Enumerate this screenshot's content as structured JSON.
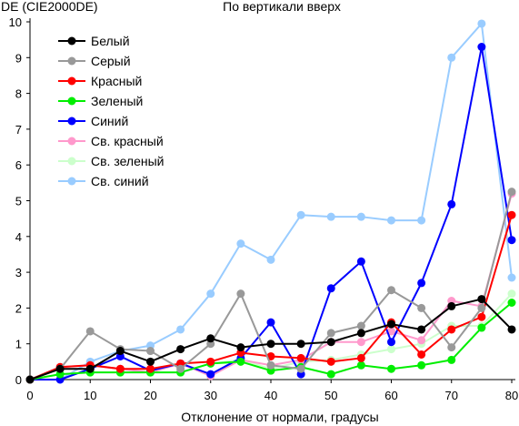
{
  "chart_data": {
    "type": "line",
    "title": "По вертикали вверх",
    "ylabel": "DE (CIE2000DE)",
    "xlabel": "Отклонение от нормали, градусы",
    "x": [
      0,
      5,
      10,
      15,
      20,
      25,
      30,
      35,
      40,
      45,
      50,
      55,
      60,
      65,
      70,
      75,
      80
    ],
    "xlim": [
      0,
      80
    ],
    "ylim": [
      0,
      10
    ],
    "xticks": [
      0,
      10,
      20,
      30,
      40,
      50,
      60,
      70,
      80
    ],
    "yticks": [
      0,
      1,
      2,
      3,
      4,
      5,
      6,
      7,
      8,
      9,
      10
    ],
    "grid": false,
    "legend_position": "top-left",
    "series": [
      {
        "name": "Белый",
        "color": "#000000",
        "values": [
          0,
          0.3,
          0.3,
          0.8,
          0.5,
          0.85,
          1.15,
          0.9,
          1.0,
          1.0,
          1.05,
          1.3,
          1.55,
          1.4,
          2.05,
          2.25,
          1.4
        ]
      },
      {
        "name": "Серый",
        "color": "#999999",
        "values": [
          0,
          0.3,
          1.35,
          0.85,
          0.8,
          0.3,
          1.0,
          2.4,
          0.4,
          0.3,
          1.3,
          1.5,
          2.5,
          2.0,
          0.9,
          2.0,
          5.25
        ]
      },
      {
        "name": "Красный",
        "color": "#ff0000",
        "values": [
          0,
          0.35,
          0.4,
          0.3,
          0.3,
          0.45,
          0.5,
          0.75,
          0.65,
          0.6,
          0.5,
          0.6,
          1.6,
          0.7,
          1.4,
          1.75,
          4.6
        ]
      },
      {
        "name": "Зеленый",
        "color": "#00ee00",
        "values": [
          0,
          0.15,
          0.2,
          0.2,
          0.2,
          0.2,
          0.45,
          0.5,
          0.25,
          0.35,
          0.15,
          0.4,
          0.3,
          0.4,
          0.55,
          1.45,
          2.15
        ]
      },
      {
        "name": "Синий",
        "color": "#0000ff",
        "values": [
          0,
          0.0,
          0.3,
          0.65,
          0.25,
          0.45,
          0.15,
          0.6,
          1.6,
          0.15,
          2.55,
          3.3,
          1.05,
          2.7,
          4.9,
          9.3,
          3.9
        ]
      },
      {
        "name": "Св. красный",
        "color": "#ff99cc",
        "values": [
          0,
          0.35,
          0.4,
          0.3,
          0.2,
          0.45,
          0.1,
          0.55,
          0.4,
          0.55,
          1.05,
          1.05,
          1.35,
          1.1,
          2.2,
          2.05,
          5.2
        ]
      },
      {
        "name": "Св. зеленый",
        "color": "#ccffcc",
        "values": [
          0,
          0.15,
          0.2,
          0.2,
          0.2,
          0.2,
          0.45,
          0.55,
          0.3,
          0.5,
          0.55,
          0.7,
          0.85,
          1.0,
          1.5,
          1.5,
          2.4
        ]
      },
      {
        "name": "Св. синий",
        "color": "#99ccff",
        "values": [
          0,
          0.0,
          0.5,
          0.8,
          0.95,
          1.4,
          2.4,
          3.8,
          3.35,
          4.6,
          4.55,
          4.55,
          4.45,
          4.45,
          9.0,
          9.95,
          2.85
        ]
      }
    ]
  }
}
